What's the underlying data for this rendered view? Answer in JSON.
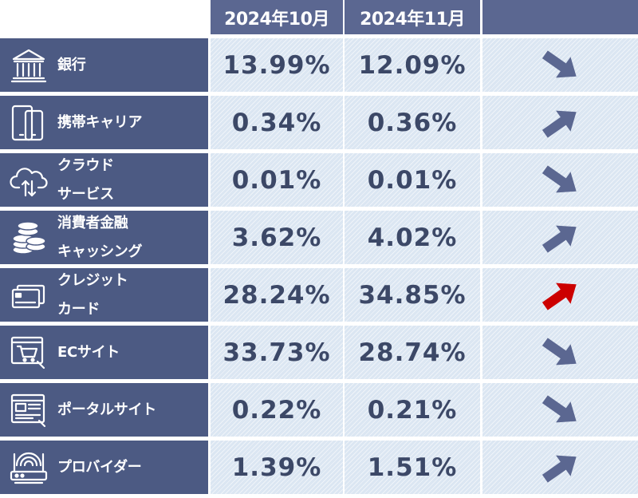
{
  "chart_data": {
    "type": "table",
    "columns": [
      "2024年10月",
      "2024年11月",
      ""
    ],
    "rows": [
      {
        "label": "銀行",
        "icon": "bank-icon",
        "oct": "13.99%",
        "nov": "12.09%",
        "trend": "down"
      },
      {
        "label": "携帯キャリア",
        "icon": "mobile-phone-icon",
        "oct": "0.34%",
        "nov": "0.36%",
        "trend": "up"
      },
      {
        "label": "クラウド\nサービス",
        "icon": "cloud-icon",
        "oct": "0.01%",
        "nov": "0.01%",
        "trend": "down"
      },
      {
        "label": "消費者金融\nキャッシング",
        "icon": "coins-icon",
        "oct": "3.62%",
        "nov": "4.02%",
        "trend": "up"
      },
      {
        "label": "クレジット\nカード",
        "icon": "credit-card-icon",
        "oct": "28.24%",
        "nov": "34.85%",
        "trend": "up",
        "highlight": true
      },
      {
        "label": "ECサイト",
        "icon": "shopping-cart-icon",
        "oct": "33.73%",
        "nov": "28.74%",
        "trend": "down"
      },
      {
        "label": "ポータルサイト",
        "icon": "portal-window-icon",
        "oct": "0.22%",
        "nov": "0.21%",
        "trend": "down"
      },
      {
        "label": "プロバイダー",
        "icon": "router-icon",
        "oct": "1.39%",
        "nov": "1.51%",
        "trend": "up"
      }
    ]
  },
  "colors": {
    "header_bg": "#5b6791",
    "label_bg": "#4c5a83",
    "cell_bg": "#dbe6f2",
    "value_text": "#3c4867",
    "arrow": "#5b6791",
    "arrow_highlight": "#cc0000"
  }
}
